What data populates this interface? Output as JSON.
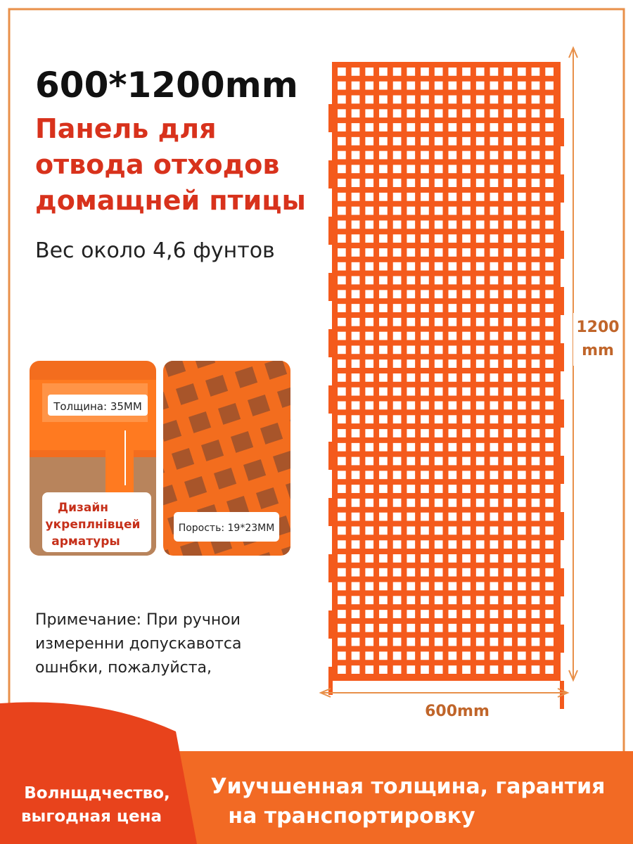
{
  "header": {
    "size": "600*1200mm",
    "title_lines": [
      "Панель для",
      "отвода отходов",
      "домащней птицы"
    ],
    "weight": "Вес около 4,6 фунтов"
  },
  "details": [
    {
      "label": "Толщина: 35MM",
      "caption_lines": [
        "Дизайн",
        "укреплнiвцей",
        "арматуры"
      ]
    },
    {
      "label": "Порость: 19*23MM"
    }
  ],
  "note_lines": [
    "Примечание: При ручнои",
    "измеренни допускавотса",
    "ошнбки, пожалуйста,"
  ],
  "dimensions": {
    "height_lines": [
      "1200",
      "mm"
    ],
    "width": "600mm"
  },
  "footer": {
    "left_lines": [
      "Волнщдчество,",
      "выгодная цена"
    ],
    "right_lines": [
      "Уиучшенная толщина, гарантия",
      "на транспортировку"
    ]
  }
}
